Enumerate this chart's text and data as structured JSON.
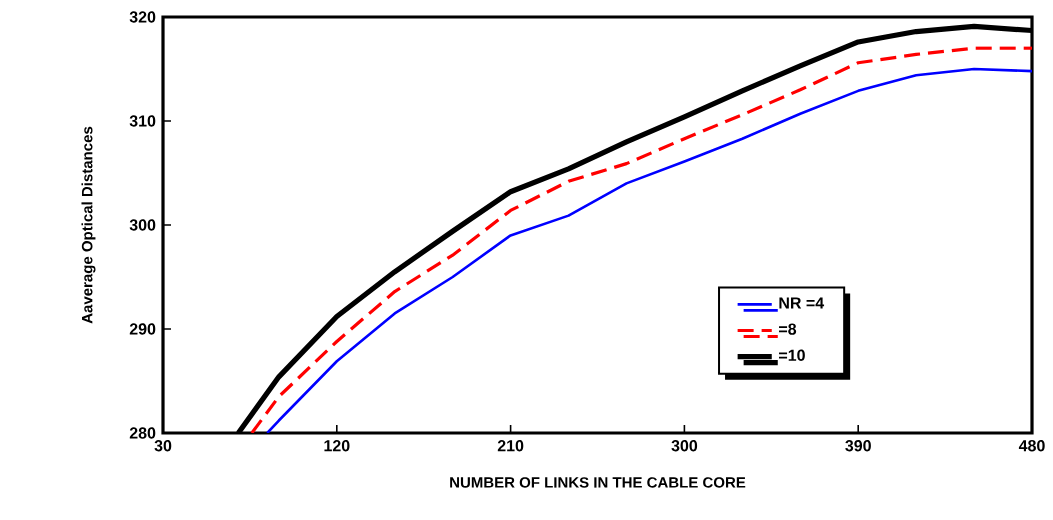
{
  "chart_data": {
    "type": "line",
    "xlabel": "NUMBER OF LINKS IN THE CABLE CORE",
    "ylabel": "Aaverage Optical Distances",
    "xlim": [
      30,
      480
    ],
    "xticks": [
      30,
      120,
      210,
      300,
      390,
      480
    ],
    "ylim": [
      280,
      320
    ],
    "yticks": [
      280,
      290,
      300,
      310,
      320
    ],
    "grid": false,
    "legend": "bottom right",
    "series": [
      {
        "name": "NR  =4",
        "color": "#0000ff",
        "line_style": "solid",
        "x": [
          84,
          90,
          120,
          150,
          180,
          210,
          240,
          270,
          300,
          330,
          360,
          390,
          420,
          450,
          480
        ],
        "values": [
          280,
          281.2,
          286.9,
          291.5,
          295.0,
          299.0,
          300.9,
          304.0,
          306.1,
          308.3,
          310.7,
          312.9,
          314.4,
          315.0,
          314.8
        ]
      },
      {
        "name": "=8",
        "color": "#ff0000",
        "line_style": "dashed",
        "x": [
          76,
          90,
          120,
          150,
          180,
          210,
          240,
          270,
          300,
          330,
          360,
          390,
          420,
          450,
          480
        ],
        "values": [
          280,
          283.5,
          288.8,
          293.6,
          297.1,
          301.4,
          304.2,
          305.9,
          308.3,
          310.6,
          313.0,
          315.6,
          316.4,
          317.0,
          317.0
        ]
      },
      {
        "name": "=10",
        "color": "#000000",
        "line_style": "solid",
        "x": [
          69,
          90,
          120,
          150,
          180,
          210,
          240,
          270,
          300,
          330,
          360,
          390,
          420,
          450,
          480
        ],
        "values": [
          280,
          285.4,
          291.2,
          295.5,
          299.4,
          303.2,
          305.4,
          308.0,
          310.4,
          312.9,
          315.3,
          317.6,
          318.6,
          319.1,
          318.7
        ]
      }
    ]
  }
}
